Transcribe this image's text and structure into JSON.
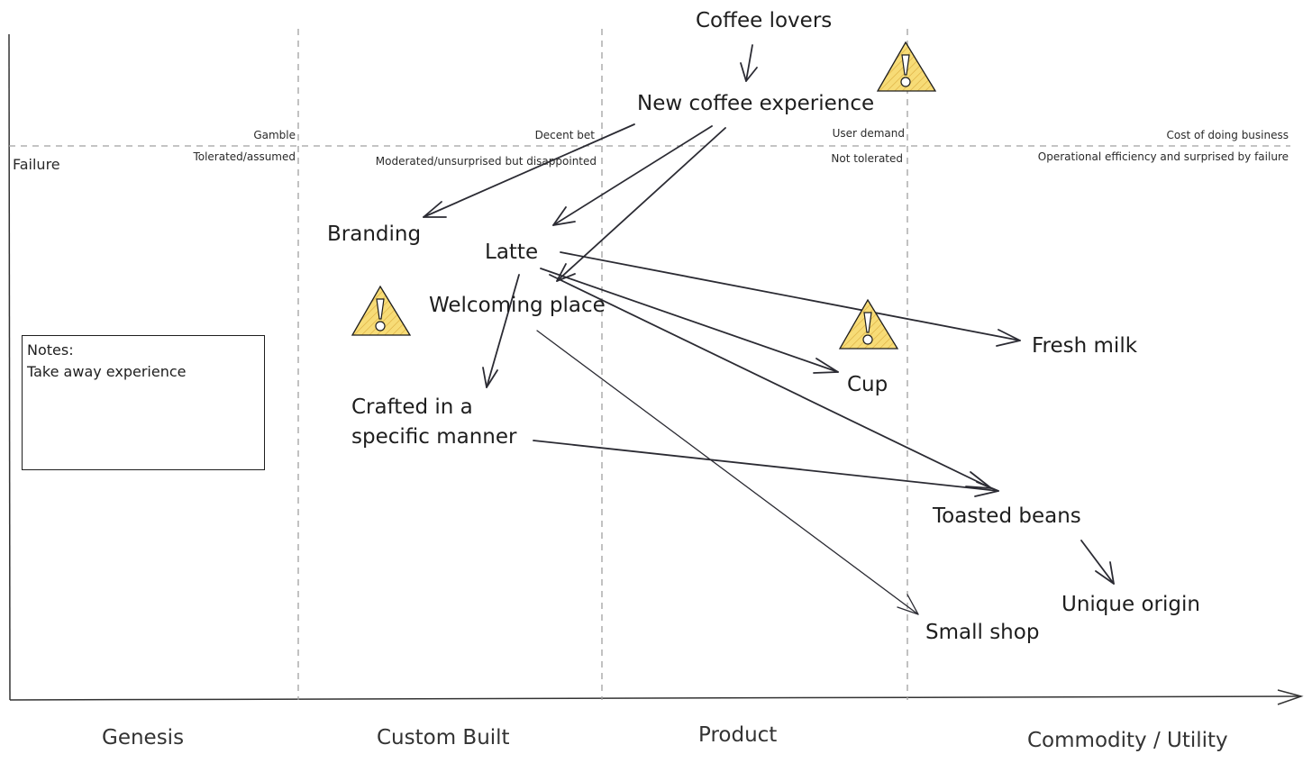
{
  "map": {
    "stages": [
      "Genesis",
      "Custom Built",
      "Product",
      "Commodity / Utility"
    ],
    "failure_label": "Failure",
    "columns": [
      {
        "top": "Gamble",
        "bottom": "Tolerated/assumed"
      },
      {
        "top": "Decent bet",
        "bottom": "Moderated/unsurprised but disappointed"
      },
      {
        "top": "User demand",
        "bottom": "Not tolerated"
      },
      {
        "top": "Cost of doing business",
        "bottom": "Operational efficiency and surprised by failure"
      }
    ],
    "nodes": {
      "coffee_lovers": "Coffee lovers",
      "new_coffee_experience": "New coffee experience",
      "branding": "Branding",
      "latte": "Latte",
      "welcoming_place": "Welcoming place",
      "crafted_line1": "Crafted in a",
      "crafted_line2": "specific manner",
      "fresh_milk": "Fresh milk",
      "cup": "Cup",
      "toasted_beans": "Toasted beans",
      "unique_origin": "Unique origin",
      "small_shop": "Small shop"
    },
    "notes": {
      "title": "Notes:",
      "body": "Take away experience"
    },
    "warning_icons": [
      "warning-icon",
      "warning-icon",
      "warning-icon"
    ],
    "warning_color": "#f5d86a",
    "line_color": "#1e1e1e",
    "dashed_color": "#a0a0a0"
  }
}
